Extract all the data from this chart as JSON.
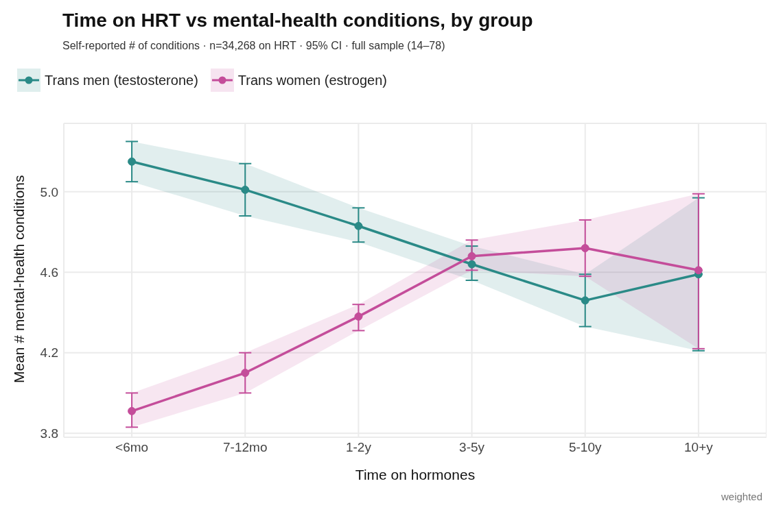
{
  "chart_data": {
    "type": "line",
    "title": "Time on HRT vs mental-health conditions, by group",
    "subtitle": "Self-reported # of conditions · n=34,268 on HRT · 95% CI · full sample (14–78)",
    "xlabel": "Time on hormones",
    "ylabel": "Mean # mental-health conditions",
    "annotations": [
      "weighted"
    ],
    "categories": [
      "<6mo",
      "7-12mo",
      "1-2y",
      "3-5y",
      "5-10y",
      "10+y"
    ],
    "series": [
      {
        "name": "Trans men (testosterone)",
        "color": "#2a8a87",
        "values": [
          5.15,
          5.01,
          4.83,
          4.64,
          4.46,
          4.59
        ],
        "lower": [
          5.05,
          4.88,
          4.75,
          4.56,
          4.33,
          4.21
        ],
        "upper": [
          5.25,
          5.14,
          4.92,
          4.73,
          4.59,
          4.97
        ],
        "errors": [
          [
            5.05,
            5.25
          ],
          [
            4.88,
            5.14
          ],
          [
            4.75,
            4.92
          ],
          [
            4.56,
            4.73
          ],
          [
            4.33,
            4.59
          ],
          [
            4.21,
            4.97
          ]
        ]
      },
      {
        "name": "Trans women (estrogen)",
        "color": "#c44d9a",
        "values": [
          3.91,
          4.1,
          4.38,
          4.68,
          4.72,
          4.61
        ],
        "lower": [
          3.83,
          4.0,
          4.31,
          4.61,
          4.58,
          4.22
        ],
        "upper": [
          4.0,
          4.2,
          4.44,
          4.76,
          4.86,
          4.99
        ],
        "errors": [
          [
            3.83,
            4.0
          ],
          [
            4.0,
            4.2
          ],
          [
            4.31,
            4.44
          ],
          [
            4.61,
            4.76
          ],
          [
            4.58,
            4.86
          ],
          [
            4.22,
            4.99
          ]
        ]
      }
    ],
    "ylim": [
      3.78,
      5.34
    ],
    "yticks": [
      3.8,
      4.2,
      4.6,
      {
        "value": 5,
        "label": "5.0"
      }
    ],
    "grid": true,
    "legend": "top left",
    "marker": "circle",
    "line_style": "solid"
  }
}
